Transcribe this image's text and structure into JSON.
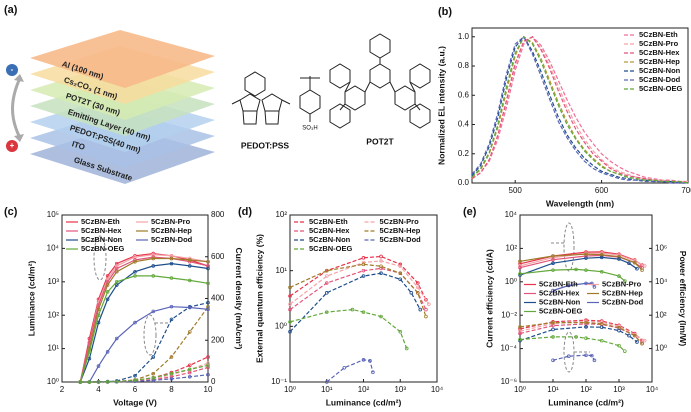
{
  "diagram": {
    "label": "(a)",
    "layers": [
      "Al (100 nm)",
      "Cs₂CO₃ (1 nm)",
      "POT2T (30 nm)",
      "Emitting Layer (40 nm)",
      "PEDOT:PSS(40 nm)",
      "ITO",
      "Glass Substrate"
    ],
    "minus": "-",
    "plus": "+",
    "molecules": [
      "PEDOT:PSS",
      "POT2T"
    ],
    "group": "SO₃H"
  },
  "chart_data": [
    {
      "type": "line",
      "label": "(b)",
      "xlabel": "Wavelength (nm)",
      "ylabel": "Normalized EL intensity (a.u.)",
      "x": [
        450,
        460,
        470,
        480,
        490,
        500,
        510,
        520,
        530,
        540,
        550,
        560,
        570,
        580,
        590,
        600,
        610,
        620,
        630,
        640,
        650,
        660,
        670,
        680,
        690,
        700
      ],
      "xlim": [
        450,
        700
      ],
      "xticks": [
        500,
        600,
        700
      ],
      "ylim": [
        0,
        1.06
      ],
      "yticks": [
        {
          "value": 0,
          "label": "0.0"
        },
        0.2,
        0.4,
        0.6,
        0.8,
        {
          "value": 1,
          "label": "1.0"
        }
      ],
      "styles": [
        "dashed"
      ],
      "markers": false,
      "legend": "upper right",
      "legend_columns": 1,
      "series": [
        {
          "name": "5CzBN-Eth",
          "color": "#f06f9a",
          "values": [
            0.03,
            0.07,
            0.15,
            0.3,
            0.52,
            0.77,
            0.95,
            1.0,
            0.94,
            0.83,
            0.7,
            0.57,
            0.45,
            0.35,
            0.27,
            0.2,
            0.15,
            0.11,
            0.08,
            0.06,
            0.04,
            0.03,
            0.02,
            0.02,
            0.01,
            0.01
          ]
        },
        {
          "name": "5CzBN-Pro",
          "color": "#f4a3a8",
          "values": [
            0.03,
            0.07,
            0.16,
            0.32,
            0.55,
            0.8,
            0.96,
            1.0,
            0.92,
            0.8,
            0.66,
            0.52,
            0.4,
            0.3,
            0.22,
            0.16,
            0.11,
            0.08,
            0.06,
            0.04,
            0.03,
            0.02,
            0.02,
            0.01,
            0.01,
            0.01
          ]
        },
        {
          "name": "5CzBN-Hex",
          "color": "#e2557a",
          "values": [
            0.03,
            0.07,
            0.16,
            0.33,
            0.57,
            0.82,
            0.97,
            1.0,
            0.91,
            0.78,
            0.63,
            0.49,
            0.37,
            0.28,
            0.2,
            0.15,
            0.1,
            0.07,
            0.05,
            0.04,
            0.03,
            0.02,
            0.01,
            0.01,
            0.01,
            0
          ]
        },
        {
          "name": "5CzBN-Hep",
          "color": "#b59a3c",
          "values": [
            0.04,
            0.09,
            0.2,
            0.38,
            0.63,
            0.87,
            1.0,
            0.96,
            0.85,
            0.7,
            0.55,
            0.42,
            0.31,
            0.23,
            0.17,
            0.12,
            0.08,
            0.06,
            0.04,
            0.03,
            0.02,
            0.02,
            0.01,
            0.01,
            0.01,
            0
          ]
        },
        {
          "name": "5CzBN-Non",
          "color": "#1f4e8c",
          "values": [
            0.05,
            0.12,
            0.25,
            0.45,
            0.72,
            0.93,
            1.0,
            0.9,
            0.76,
            0.6,
            0.45,
            0.33,
            0.24,
            0.17,
            0.12,
            0.08,
            0.06,
            0.04,
            0.03,
            0.02,
            0.02,
            0.01,
            0.01,
            0.01,
            0,
            0
          ]
        },
        {
          "name": "5CzBN-Dod",
          "color": "#5a64b8",
          "values": [
            0.06,
            0.13,
            0.27,
            0.48,
            0.75,
            0.95,
            1.0,
            0.88,
            0.73,
            0.57,
            0.42,
            0.31,
            0.22,
            0.15,
            0.1,
            0.07,
            0.05,
            0.03,
            0.02,
            0.02,
            0.01,
            0.01,
            0.01,
            0,
            0,
            0
          ]
        },
        {
          "name": "5CzBN-OEG",
          "color": "#62a83a",
          "values": [
            0.04,
            0.1,
            0.21,
            0.4,
            0.66,
            0.89,
            1.0,
            0.95,
            0.83,
            0.68,
            0.53,
            0.4,
            0.3,
            0.22,
            0.16,
            0.11,
            0.08,
            0.06,
            0.04,
            0.03,
            0.02,
            0.02,
            0.01,
            0.01,
            0.01,
            0
          ]
        }
      ]
    },
    {
      "type": "line",
      "label": "(c)",
      "xlabel": "Voltage (V)",
      "ylabel": "Luminance (cd/m²)",
      "y2label": "Current density (mA/cm²)",
      "x": [
        3,
        3.5,
        4,
        4.5,
        5,
        6,
        7,
        8,
        9,
        10
      ],
      "xlim": [
        2,
        10
      ],
      "xticks": [
        2,
        4,
        6,
        8,
        10
      ],
      "ylim": [
        1,
        100000
      ],
      "ylog": true,
      "yticks": [
        {
          "value": 1,
          "label": "10⁰"
        },
        {
          "value": 10,
          "label": "10¹"
        },
        {
          "value": 100,
          "label": "10²"
        },
        {
          "value": 1000,
          "label": "10³"
        },
        {
          "value": 10000,
          "label": "10⁴"
        },
        {
          "value": 100000,
          "label": "10⁵"
        }
      ],
      "y2lim": [
        0,
        800
      ],
      "y2ticks": [
        0,
        200,
        400,
        600,
        800
      ],
      "styles": [
        "solid",
        "dashed"
      ],
      "markers": true,
      "legend": "upper left",
      "legend_columns": 2,
      "series": [
        {
          "name": "5CzBN-Eth",
          "color": "#e8334a",
          "values": [
            1,
            20,
            300,
            1500,
            3500,
            6000,
            7000,
            6000,
            4500,
            3000
          ],
          "values2": [
            0,
            0,
            0,
            1,
            2,
            8,
            20,
            45,
            80,
            120
          ]
        },
        {
          "name": "5CzBN-Pro",
          "color": "#f4a3a8",
          "values": [
            1,
            15,
            250,
            1200,
            3000,
            5500,
            6500,
            6000,
            5000,
            4000
          ],
          "values2": [
            0,
            0,
            0,
            1,
            2,
            6,
            15,
            35,
            60,
            90
          ]
        },
        {
          "name": "5CzBN-Hex",
          "color": "#e2557a",
          "values": [
            1,
            15,
            200,
            1000,
            2500,
            4500,
            5500,
            5000,
            4000,
            3000
          ],
          "values2": [
            0,
            0,
            0,
            0,
            1,
            4,
            10,
            25,
            45,
            70
          ]
        },
        {
          "name": "5CzBN-Hep",
          "color": "#a07a2a",
          "values": [
            1,
            10,
            150,
            800,
            2000,
            4000,
            5000,
            5000,
            4500,
            4000
          ],
          "values2": [
            0,
            0,
            0,
            1,
            3,
            10,
            40,
            120,
            240,
            360
          ]
        },
        {
          "name": "5CzBN-Non",
          "color": "#1f4e8c",
          "values": [
            1,
            5,
            60,
            300,
            800,
            2000,
            3000,
            3500,
            3000,
            2500
          ],
          "values2": [
            0,
            0,
            1,
            2,
            5,
            30,
            120,
            300,
            360,
            380
          ]
        },
        {
          "name": "5CzBN-Dod",
          "color": "#5a64b8",
          "values": [
            null,
            1,
            3,
            8,
            20,
            60,
            130,
            180,
            170,
            150
          ],
          "values2": [
            0,
            0,
            0,
            0,
            1,
            3,
            8,
            15,
            25,
            35
          ]
        },
        {
          "name": "5CzBN-OEG",
          "color": "#62a83a",
          "values": [
            1,
            8,
            100,
            500,
            1000,
            1500,
            1500,
            1300,
            1100,
            900
          ],
          "values2": [
            0,
            0,
            0,
            1,
            2,
            8,
            20,
            40,
            60,
            80
          ]
        }
      ]
    },
    {
      "type": "line",
      "label": "(d)",
      "xlabel": "Luminance (cd/m²)",
      "ylabel": "External quantum efficiency (%)",
      "xlim": [
        1,
        10000
      ],
      "xlog": true,
      "xticks": [
        {
          "value": 1,
          "label": "10⁰"
        },
        {
          "value": 10,
          "label": "10¹"
        },
        {
          "value": 100,
          "label": "10²"
        },
        {
          "value": 1000,
          "label": "10³"
        },
        {
          "value": 10000,
          "label": "10⁴"
        }
      ],
      "ylim": [
        0.1,
        100
      ],
      "ylog": true,
      "yticks": [
        {
          "value": 0.1,
          "label": "10⁻¹"
        },
        {
          "value": 1,
          "label": "10⁰"
        },
        {
          "value": 10,
          "label": "10¹"
        },
        {
          "value": 100,
          "label": "10²"
        }
      ],
      "styles": [
        "dashed"
      ],
      "markers": true,
      "legend": "upper left",
      "legend_columns": 2,
      "series": [
        {
          "name": "5CzBN-Eth",
          "color": "#e8334a",
          "x": [
            1,
            10,
            100,
            300,
            1000,
            3000,
            5000
          ],
          "values": [
            3.5,
            10,
            17,
            18,
            13,
            6,
            3
          ]
        },
        {
          "name": "5CzBN-Pro",
          "color": "#f4a3a8",
          "x": [
            1,
            10,
            100,
            300,
            1000,
            3000,
            6000
          ],
          "values": [
            2.5,
            8,
            14,
            15,
            12,
            5,
            2.5
          ]
        },
        {
          "name": "5CzBN-Hex",
          "color": "#e2557a",
          "x": [
            1,
            10,
            100,
            300,
            1000,
            3000,
            5000
          ],
          "values": [
            2,
            6,
            10,
            11,
            9,
            4,
            2
          ]
        },
        {
          "name": "5CzBN-Hep",
          "color": "#a07a2a",
          "x": [
            1,
            10,
            100,
            300,
            1000,
            3000,
            5000
          ],
          "values": [
            5,
            10,
            13,
            12,
            9,
            4,
            1.5
          ]
        },
        {
          "name": "5CzBN-Non",
          "color": "#1f4e8c",
          "x": [
            1,
            10,
            100,
            300,
            1000,
            2000,
            3500
          ],
          "values": [
            0.8,
            4,
            8,
            9,
            7,
            4,
            2
          ]
        },
        {
          "name": "5CzBN-Dod",
          "color": "#5a64b8",
          "x": [
            10,
            30,
            100,
            150,
            180
          ],
          "values": [
            0.1,
            0.18,
            0.25,
            0.24,
            0.15
          ]
        },
        {
          "name": "5CzBN-OEG",
          "color": "#62a83a",
          "x": [
            1,
            10,
            50,
            100,
            300,
            1000,
            1500
          ],
          "values": [
            1.2,
            1.8,
            2,
            1.8,
            1.5,
            0.8,
            0.4
          ]
        }
      ]
    },
    {
      "type": "line",
      "label": "(e)",
      "xlabel": "Luminance (cd/m²)",
      "ylabel": "Current efficiency (cd/A)",
      "y2label": "Power efficiency (lm/W)",
      "xlim": [
        1,
        10000
      ],
      "xlog": true,
      "xticks": [
        {
          "value": 1,
          "label": "10⁰"
        },
        {
          "value": 10,
          "label": "10¹"
        },
        {
          "value": 100,
          "label": "10²"
        },
        {
          "value": 1000,
          "label": "10³"
        },
        {
          "value": 10000,
          "label": "10⁴"
        }
      ],
      "ylim": [
        1e-06,
        10000
      ],
      "ylog": true,
      "yticks": [
        {
          "value": 1e-06,
          "label": "10⁻⁶"
        },
        {
          "value": 0.0001,
          "label": "10⁻⁴"
        },
        {
          "value": 0.01,
          "label": "10⁻²"
        },
        {
          "value": 1,
          "label": "10⁰"
        },
        {
          "value": 100,
          "label": "10²"
        },
        {
          "value": 10000,
          "label": "10⁴"
        }
      ],
      "y2lim": [
        0.01,
        100000000
      ],
      "y2log": true,
      "y2ticks": [
        {
          "value": 1,
          "label": "10⁰"
        },
        {
          "value": 100,
          "label": "10²"
        },
        {
          "value": 10000,
          "label": "10⁴"
        },
        {
          "value": 1000000,
          "label": "10⁶"
        }
      ],
      "styles": [
        "solid",
        "dashed"
      ],
      "markers": true,
      "legend": "center left",
      "legend_columns": 2,
      "series": [
        {
          "name": "5CzBN-Eth",
          "color": "#e8334a",
          "x": [
            1,
            10,
            100,
            300,
            1000,
            3000,
            5000
          ],
          "values": [
            12,
            35,
            60,
            62,
            45,
            20,
            10
          ],
          "values2": [
            15,
            40,
            50,
            45,
            25,
            8,
            3
          ]
        },
        {
          "name": "5CzBN-Pro",
          "color": "#f4a3a8",
          "x": [
            1,
            10,
            100,
            300,
            1000,
            3000,
            6000
          ],
          "values": [
            9,
            28,
            50,
            52,
            40,
            18,
            9
          ],
          "values2": [
            11,
            32,
            42,
            38,
            22,
            7,
            3
          ]
        },
        {
          "name": "5CzBN-Hex",
          "color": "#e2557a",
          "x": [
            1,
            10,
            100,
            300,
            1000,
            3000,
            5000
          ],
          "values": [
            7,
            21,
            35,
            38,
            30,
            14,
            7
          ],
          "values2": [
            8,
            24,
            30,
            28,
            17,
            6,
            2
          ]
        },
        {
          "name": "5CzBN-Hep",
          "color": "#a07a2a",
          "x": [
            1,
            10,
            100,
            300,
            1000,
            3000,
            5000
          ],
          "values": [
            17,
            35,
            45,
            42,
            32,
            14,
            5
          ],
          "values2": [
            20,
            36,
            36,
            30,
            18,
            6,
            2
          ]
        },
        {
          "name": "5CzBN-Non",
          "color": "#1f4e8c",
          "x": [
            1,
            10,
            100,
            300,
            1000,
            2000,
            3500
          ],
          "values": [
            2.5,
            13,
            26,
            29,
            23,
            13,
            6
          ],
          "values2": [
            3,
            14,
            20,
            19,
            12,
            6,
            2.5
          ]
        },
        {
          "name": "5CzBN-Dod",
          "color": "#5a64b8",
          "x": [
            10,
            30,
            100,
            150,
            180
          ],
          "values": [
            0.3,
            0.6,
            0.8,
            0.8,
            0.5
          ],
          "values2": [
            0.2,
            0.35,
            0.4,
            0.38,
            0.2
          ]
        },
        {
          "name": "5CzBN-OEG",
          "color": "#62a83a",
          "x": [
            1,
            10,
            50,
            100,
            300,
            1000,
            1500
          ],
          "values": [
            3,
            5,
            5.5,
            5,
            4,
            2.2,
            1.1
          ],
          "values2": [
            3.5,
            5,
            5,
            4.2,
            3,
            1.5,
            0.7
          ]
        }
      ]
    }
  ]
}
